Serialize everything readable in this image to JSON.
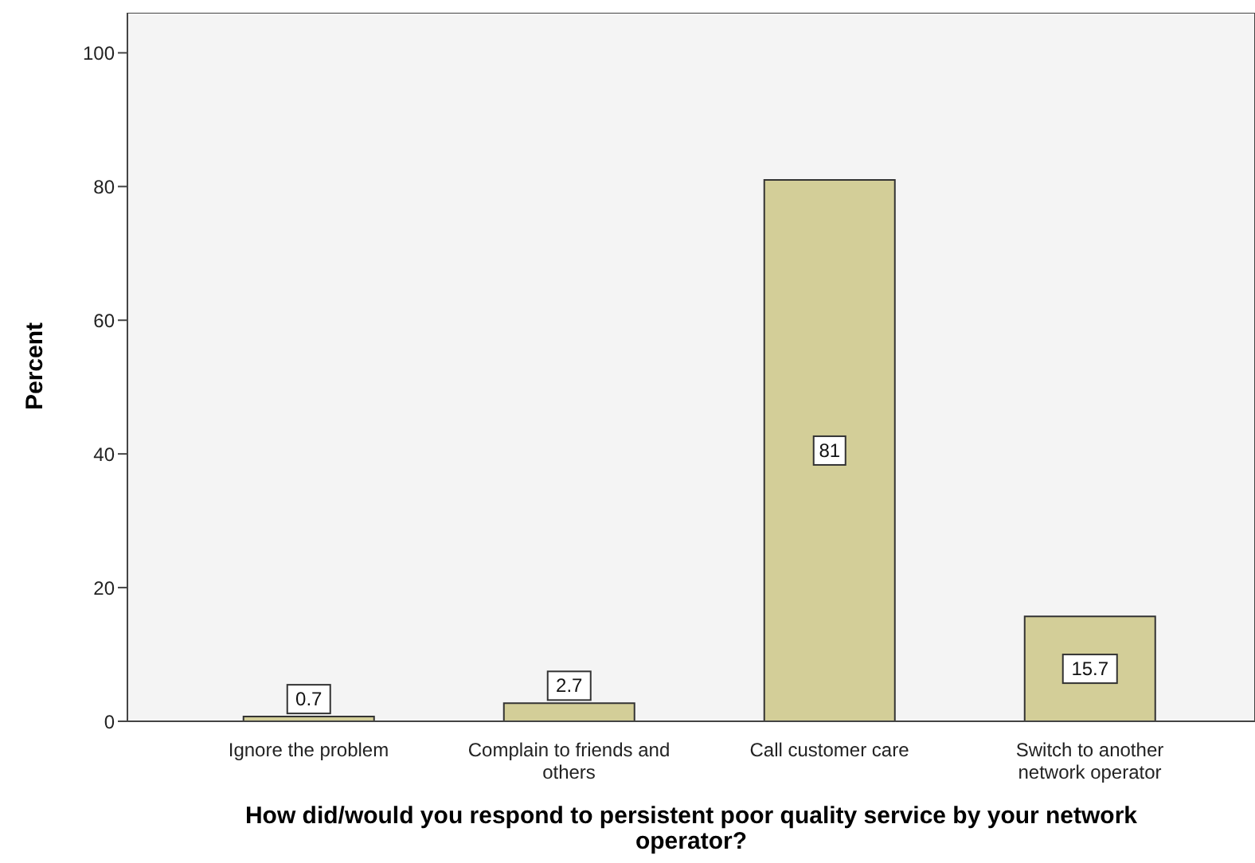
{
  "chart_data": {
    "type": "bar",
    "xlabel": "How did/would you respond to persistent poor quality service by your network operator?",
    "ylabel": "Percent",
    "categories": [
      "Ignore the problem",
      "Complain to friends and others",
      "Call customer care",
      "Switch to another network operator"
    ],
    "values": [
      0.7,
      2.7,
      81,
      15.7
    ],
    "color": "#d3ce98",
    "ylim": [
      0,
      106
    ],
    "yticks": [
      0,
      20,
      40,
      60,
      80,
      100
    ],
    "data_labels": true
  }
}
